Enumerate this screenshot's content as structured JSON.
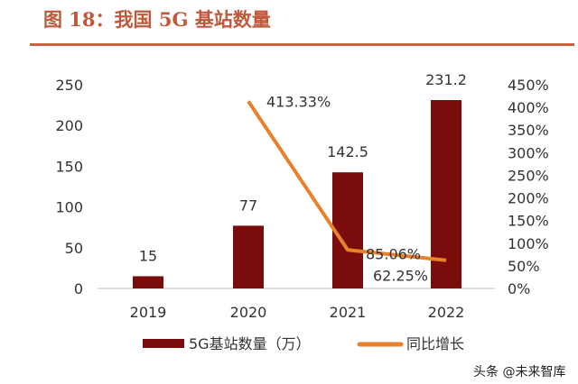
{
  "title": "图 18：我国 5G 基站数量",
  "watermark": "头条 @未来智库",
  "chart_data": {
    "type": "bar+line",
    "categories": [
      "2019",
      "2020",
      "2021",
      "2022"
    ],
    "series": [
      {
        "name": "5G基站数量（万）",
        "type": "bar",
        "axis": "left",
        "values": [
          15,
          77,
          142.5,
          231.2
        ],
        "labels": [
          "15",
          "77",
          "142.5",
          "231.2"
        ],
        "color": "#7B0C0C"
      },
      {
        "name": "同比增长",
        "type": "line",
        "axis": "right",
        "values": [
          null,
          413.33,
          85.06,
          62.25
        ],
        "labels": [
          "",
          "413.33%",
          "85.06%",
          "62.25%"
        ],
        "color": "#E8822A"
      }
    ],
    "left_axis": {
      "ylim": [
        0,
        250
      ],
      "ticks": [
        "0",
        "50",
        "100",
        "150",
        "200",
        "250"
      ]
    },
    "right_axis": {
      "ylim": [
        0,
        450
      ],
      "ticks": [
        "0%",
        "50%",
        "100%",
        "150%",
        "200%",
        "250%",
        "300%",
        "350%",
        "400%",
        "450%"
      ]
    },
    "grid": false,
    "legend": "bottom"
  }
}
